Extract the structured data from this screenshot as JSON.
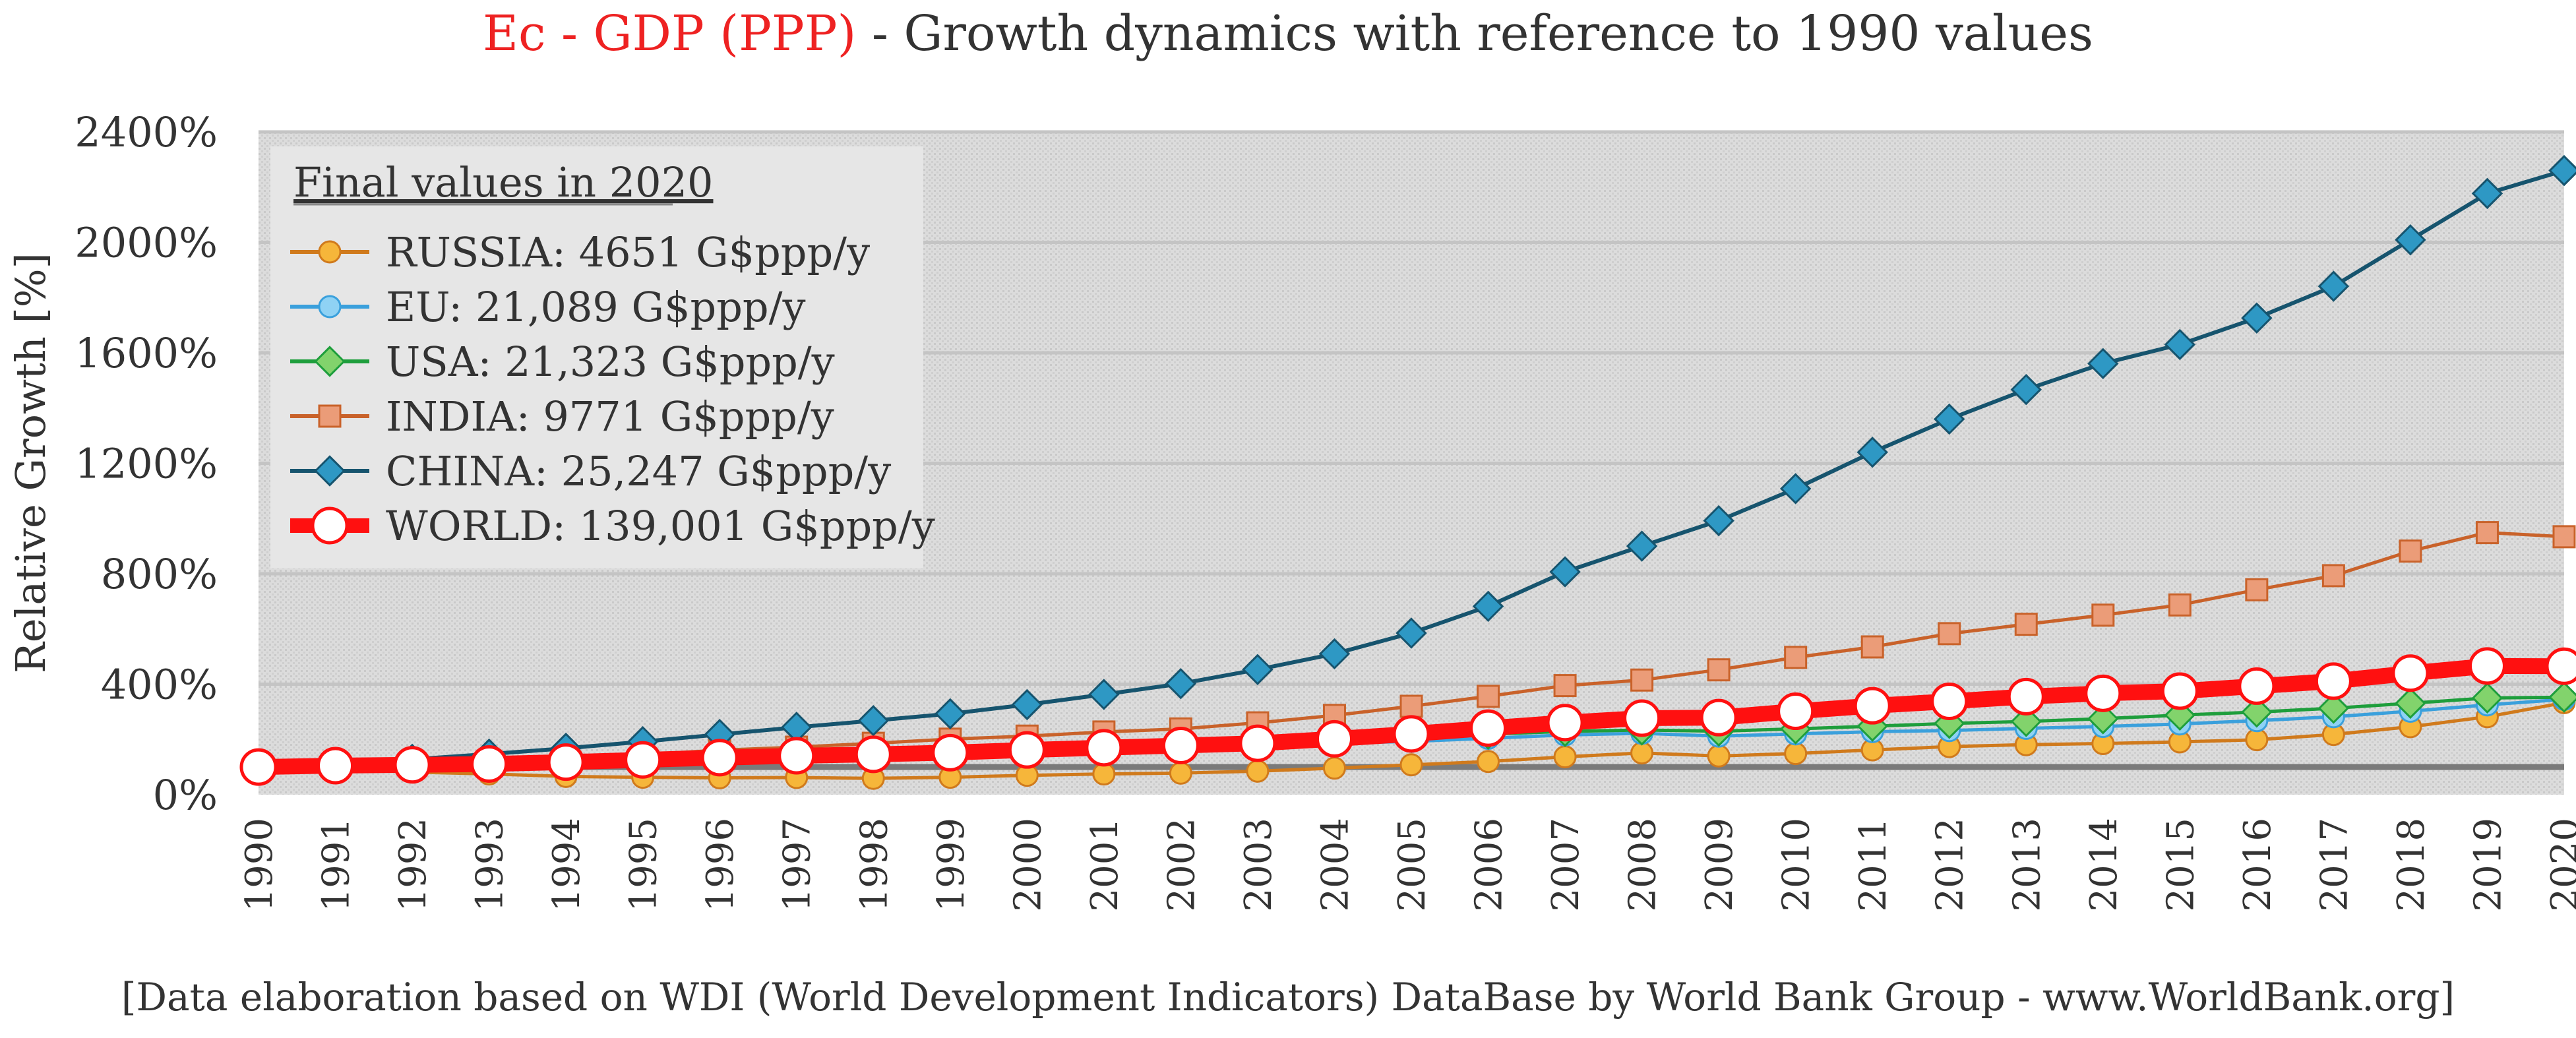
{
  "title": {
    "accent": "Ec - GDP (PPP)",
    "rest": " - Growth dynamics with reference to 1990 values"
  },
  "footnote": "[Data elaboration based on WDI (World Development Indicators) DataBase by World Bank Group - www.WorldBank.org]",
  "colors": {
    "title_accent": "#ee2222",
    "plot_bg": "#dcdcdc",
    "gridline": "#c4c4c4",
    "baseline": "#7a7a7a"
  },
  "chart_data": {
    "type": "line",
    "title": "Ec - GDP (PPP) - Growth dynamics with reference to 1990 values",
    "xlabel": "",
    "ylabel": "Relative Growth [%]",
    "ylim": [
      0,
      2400
    ],
    "yticks": [
      0,
      400,
      800,
      1200,
      1600,
      2000,
      2400
    ],
    "ytick_labels": [
      "0%",
      "400%",
      "800%",
      "1200%",
      "1600%",
      "2000%",
      "2400%"
    ],
    "grid": true,
    "legend_title": "Final values in 2020",
    "legend_position": "top-left",
    "x": [
      "1990",
      "1991",
      "1992",
      "1993",
      "1994",
      "1995",
      "1996",
      "1997",
      "1998",
      "1999",
      "2000",
      "2001",
      "2002",
      "2003",
      "2004",
      "2005",
      "2006",
      "2007",
      "2008",
      "2009",
      "2010",
      "2011",
      "2012",
      "2013",
      "2014",
      "2015",
      "2016",
      "2017",
      "2018",
      "2019",
      "2020"
    ],
    "reference_line": 100,
    "series": [
      {
        "name": "RUSSIA: 4651 G$ppp/y",
        "color": "#d07a1c",
        "fill": "#f6b63a",
        "marker": "circle",
        "width": 5,
        "values": [
          100,
          95,
          82,
          75,
          66,
          63,
          61,
          62,
          59,
          63,
          70,
          75,
          78,
          85,
          96,
          108,
          120,
          137,
          151,
          140,
          149,
          162,
          174,
          181,
          185,
          191,
          199,
          218,
          246,
          282,
          333
        ]
      },
      {
        "name": "EU: 21,089 G$ppp/y",
        "color": "#3aa0dc",
        "fill": "#8fd2f4",
        "marker": "circle",
        "width": 5,
        "values": [
          100,
          104,
          108,
          111,
          117,
          123,
          130,
          136,
          143,
          149,
          158,
          165,
          172,
          177,
          186,
          193,
          204,
          216,
          222,
          212,
          220,
          228,
          232,
          240,
          247,
          256,
          268,
          282,
          302,
          325,
          345
        ]
      },
      {
        "name": "USA: 21,323 G$ppp/y",
        "color": "#1e9e3c",
        "fill": "#82d36c",
        "marker": "diamond",
        "width": 5,
        "values": [
          100,
          102,
          108,
          113,
          120,
          126,
          133,
          141,
          147,
          155,
          163,
          170,
          176,
          184,
          195,
          207,
          219,
          229,
          234,
          230,
          238,
          248,
          258,
          265,
          275,
          288,
          299,
          313,
          331,
          350,
          353
        ]
      },
      {
        "name": "INDIA: 9771 G$ppp/y",
        "color": "#c9622a",
        "fill": "#eb9c78",
        "marker": "square",
        "width": 5,
        "values": [
          100,
          105,
          113,
          122,
          132,
          145,
          161,
          172,
          186,
          201,
          212,
          227,
          238,
          260,
          287,
          320,
          356,
          395,
          415,
          452,
          497,
          535,
          583,
          617,
          650,
          687,
          742,
          793,
          882,
          949,
          934
        ]
      },
      {
        "name": "CHINA: 25,247 G$ppp/y",
        "color": "#16546e",
        "fill": "#2e98c4",
        "marker": "diamond",
        "width": 6,
        "values": [
          100,
          110,
          128,
          147,
          168,
          192,
          218,
          244,
          268,
          293,
          326,
          363,
          402,
          453,
          510,
          585,
          682,
          807,
          900,
          992,
          1108,
          1240,
          1360,
          1467,
          1561,
          1630,
          1726,
          1841,
          2009,
          2177,
          2260
        ]
      },
      {
        "name": "WORLD: 139,001 G$ppp/y",
        "color": "#ff1010",
        "fill": "#ffffff",
        "marker": "circle",
        "width": 24,
        "values": [
          100,
          105,
          108,
          111,
          118,
          126,
          134,
          141,
          146,
          152,
          162,
          170,
          178,
          186,
          202,
          220,
          241,
          261,
          277,
          279,
          302,
          322,
          338,
          355,
          367,
          375,
          393,
          411,
          440,
          466,
          465
        ]
      }
    ]
  }
}
